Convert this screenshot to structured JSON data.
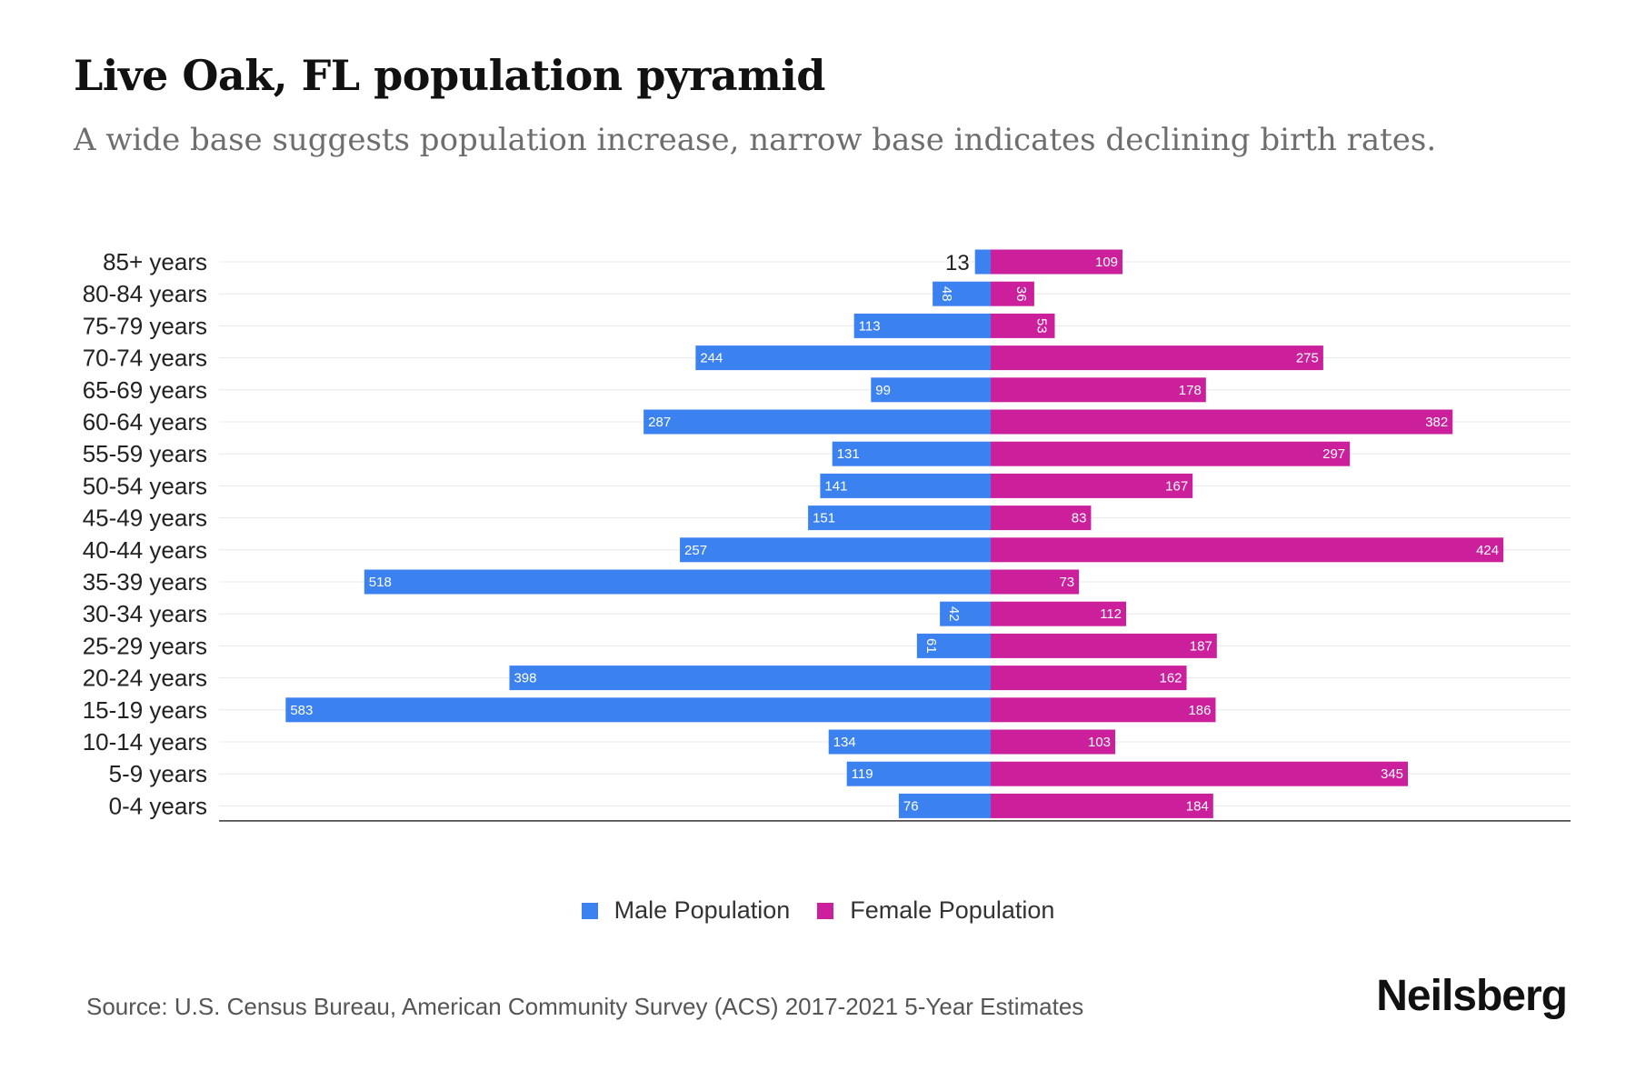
{
  "header": {
    "title": "Live Oak, FL population pyramid",
    "subtitle": "A wide base suggests population increase, narrow base indicates declining birth rates."
  },
  "chart_data": {
    "type": "bar",
    "orientation": "horizontal-pyramid",
    "title": "Live Oak, FL population pyramid",
    "subtitle": "A wide base suggests population increase, narrow base indicates declining birth rates.",
    "categories": [
      "85+ years",
      "80-84 years",
      "75-79 years",
      "70-74 years",
      "65-69 years",
      "60-64 years",
      "55-59 years",
      "50-54 years",
      "45-49 years",
      "40-44 years",
      "35-39 years",
      "30-34 years",
      "25-29 years",
      "20-24 years",
      "15-19 years",
      "10-14 years",
      "5-9 years",
      "0-4 years"
    ],
    "series": [
      {
        "name": "Male Population",
        "color": "#3b82f0",
        "side": "left",
        "values": [
          13,
          48,
          113,
          244,
          99,
          287,
          131,
          141,
          151,
          257,
          518,
          42,
          61,
          398,
          583,
          134,
          119,
          76
        ]
      },
      {
        "name": "Female Population",
        "color": "#cc1f9c",
        "side": "right",
        "values": [
          109,
          36,
          53,
          275,
          178,
          382,
          297,
          167,
          83,
          424,
          73,
          112,
          187,
          162,
          186,
          103,
          345,
          184
        ]
      }
    ],
    "xlim": [
      -640,
      480
    ],
    "grid": true,
    "legend_position": "bottom-center"
  },
  "legend": {
    "male_label": "Male Population",
    "female_label": "Female Population",
    "male_color": "#3b82f0",
    "female_color": "#cc1f9c"
  },
  "footer": {
    "source": "Source: U.S. Census Bureau, American Community Survey (ACS) 2017-2021 5-Year Estimates",
    "brand": "Neilsberg"
  }
}
